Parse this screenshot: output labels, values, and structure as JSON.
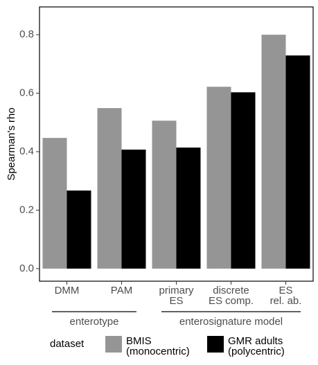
{
  "chart_data": {
    "type": "bar",
    "y_label": "Spearman's rho",
    "categories": [
      "DMM",
      "PAM",
      "primary\nES",
      "discrete\nES comp.",
      "ES\nrel. ab."
    ],
    "groups": [
      {
        "label": "enterotype",
        "size": 2
      },
      {
        "label": "enterosignature model",
        "size": 3
      }
    ],
    "series": [
      {
        "name": "BMIS\n(monocentric)",
        "color": "#959595",
        "values": [
          0.447,
          0.549,
          0.506,
          0.622,
          0.8
        ]
      },
      {
        "name": "GMR adults\n(polycentric)",
        "color": "#000000",
        "values": [
          0.267,
          0.407,
          0.414,
          0.603,
          0.729
        ]
      }
    ],
    "ylim": [
      -0.043,
      0.895
    ],
    "yticks": [
      {
        "value": 0,
        "label": "0.0"
      },
      0.2,
      0.4,
      0.6,
      0.8
    ],
    "legend_title": "dataset",
    "legend_position": "bottom"
  }
}
